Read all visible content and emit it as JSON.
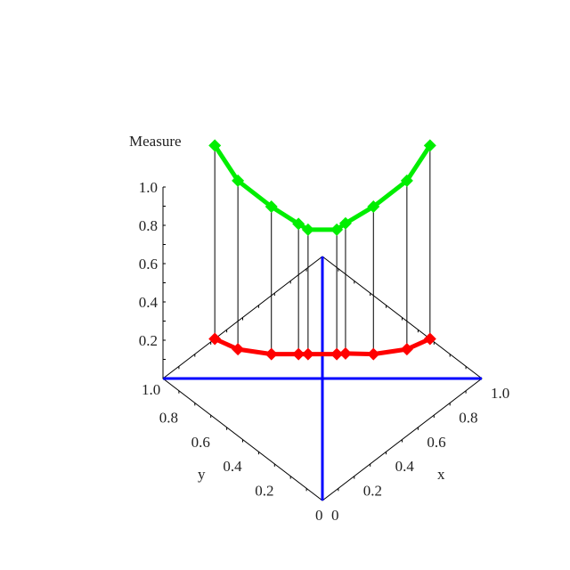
{
  "chart_data": {
    "type": "line",
    "projection": "3d",
    "zlabel": "Measure",
    "xlabel": "x",
    "ylabel": "y",
    "xlim": [
      0,
      1
    ],
    "ylim": [
      0,
      1
    ],
    "x_ticks": [
      "0",
      "0.2",
      "0.4",
      "0.6",
      "0.8",
      "1.0"
    ],
    "y_ticks": [
      "0",
      "0.2",
      "0.4",
      "0.6",
      "0.8",
      "1.0"
    ],
    "z_ticks": [
      "0.2",
      "0.4",
      "0.6",
      "0.8",
      "1.0"
    ],
    "z_tick_values": [
      0.2,
      0.4,
      0.6,
      0.8,
      1.0
    ],
    "points_x": [
      0.325,
      0.355,
      0.44,
      0.525,
      0.555,
      0.645,
      0.675,
      0.76,
      0.885,
      1.0
    ],
    "points_y": [
      1.0,
      0.885,
      0.76,
      0.675,
      0.645,
      0.555,
      0.53,
      0.44,
      0.355,
      0.325
    ],
    "series": [
      {
        "color": "#ff0000",
        "z": [
          0,
          0,
          0,
          0,
          0,
          0,
          0,
          0,
          0,
          0
        ]
      },
      {
        "color": "#00ee00",
        "z": [
          1.01,
          0.88,
          0.77,
          0.68,
          0.65,
          0.65,
          0.68,
          0.77,
          0.88,
          1.01
        ]
      }
    ],
    "axis_line_color": "#0000ff",
    "stem_color": "#000000"
  }
}
